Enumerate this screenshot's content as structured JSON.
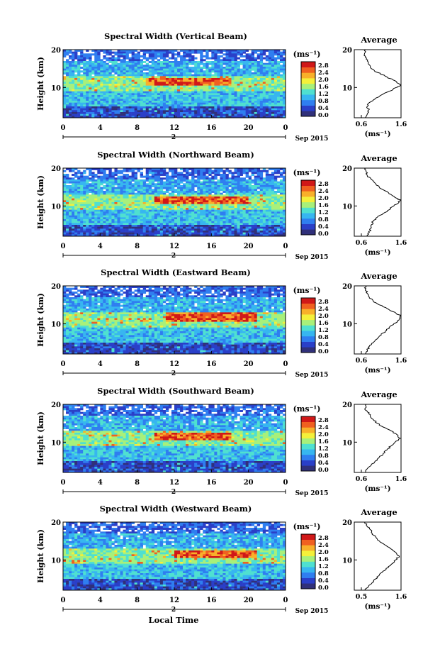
{
  "figure": {
    "xlabel": "Local Time",
    "date_label": "Sep 2015",
    "day_label": "2",
    "colorbar_unit": "(ms⁻¹)",
    "colorbar_ticks": [
      "2.8",
      "2.4",
      "2.0",
      "1.6",
      "1.2",
      "0.8",
      "0.4",
      "0.0"
    ],
    "avg_title": "Average",
    "avg_xlabel": "(ms⁻¹)",
    "ylabel": "Height (km)",
    "colors": {
      "scale": [
        "#30307a",
        "#2a3fc8",
        "#2f7ef0",
        "#37b6f0",
        "#4fe0d0",
        "#a8f07a",
        "#f4f03a",
        "#f8b02a",
        "#f06020",
        "#d01818"
      ],
      "axis": "#000000"
    }
  },
  "chart_data": [
    {
      "type": "heatmap",
      "title": "Spectral Width (Vertical Beam)",
      "x_ticks": [
        "0",
        "4",
        "8",
        "12",
        "16",
        "20",
        "0"
      ],
      "xlim": [
        0,
        24
      ],
      "y_ticks": [
        "20",
        "10"
      ],
      "ylim": [
        2,
        20
      ],
      "clim": [
        0.0,
        2.8
      ],
      "max_region": {
        "time": [
          9,
          18
        ],
        "height": [
          10.5,
          12.5
        ]
      },
      "average_profile": {
        "x_ticks": [
          "0.6",
          "1.6"
        ],
        "xlim": [
          0.6,
          1.6
        ],
        "y_ticks": [
          "20",
          "10"
        ],
        "heights": [
          2,
          3,
          4,
          5,
          6,
          7,
          8,
          9,
          10,
          10.5,
          11,
          12,
          13,
          14,
          15,
          16,
          17,
          18,
          19,
          20
        ],
        "values": [
          0.7,
          0.75,
          0.78,
          0.75,
          0.8,
          0.95,
          1.1,
          1.3,
          1.48,
          1.6,
          1.55,
          1.4,
          1.2,
          1.0,
          0.85,
          0.8,
          0.75,
          0.7,
          0.68,
          0.7
        ]
      }
    },
    {
      "type": "heatmap",
      "title": "Spectral Width (Northward Beam)",
      "x_ticks": [
        "0",
        "4",
        "8",
        "12",
        "16",
        "20",
        "0"
      ],
      "xlim": [
        0,
        24
      ],
      "y_ticks": [
        "20",
        "10"
      ],
      "ylim": [
        2,
        20
      ],
      "clim": [
        0.0,
        2.8
      ],
      "max_region": {
        "time": [
          10,
          20
        ],
        "height": [
          10.5,
          12.5
        ]
      },
      "average_profile": {
        "x_ticks": [
          "0.6",
          "1.6"
        ],
        "xlim": [
          0.6,
          1.6
        ],
        "y_ticks": [
          "20",
          "10"
        ],
        "heights": [
          2,
          3,
          4,
          5,
          6,
          7,
          8,
          9,
          10,
          11,
          11.5,
          12,
          13,
          14,
          15,
          16,
          17,
          18,
          19,
          20
        ],
        "values": [
          0.75,
          0.8,
          0.82,
          0.85,
          0.9,
          1.0,
          1.15,
          1.3,
          1.42,
          1.55,
          1.6,
          1.5,
          1.35,
          1.2,
          1.05,
          0.95,
          0.85,
          0.75,
          0.72,
          0.7
        ]
      }
    },
    {
      "type": "heatmap",
      "title": "Spectral Width (Eastward Beam)",
      "x_ticks": [
        "0",
        "4",
        "8",
        "12",
        "16",
        "20",
        "0"
      ],
      "xlim": [
        0,
        24
      ],
      "y_ticks": [
        "20",
        "10"
      ],
      "ylim": [
        2,
        20
      ],
      "clim": [
        0.0,
        2.8
      ],
      "max_region": {
        "time": [
          11,
          21
        ],
        "height": [
          10.5,
          13
        ]
      },
      "average_profile": {
        "x_ticks": [
          "0.6",
          "1.6"
        ],
        "xlim": [
          0.6,
          1.6
        ],
        "y_ticks": [
          "20",
          "10"
        ],
        "heights": [
          2,
          3,
          4,
          5,
          6,
          7,
          8,
          9,
          10,
          11,
          12,
          13,
          14,
          15,
          16,
          17,
          18,
          19,
          20
        ],
        "values": [
          0.7,
          0.75,
          0.8,
          0.9,
          1.0,
          1.1,
          1.2,
          1.3,
          1.42,
          1.55,
          1.6,
          1.45,
          1.25,
          1.05,
          0.9,
          0.8,
          0.75,
          0.7,
          0.72
        ]
      }
    },
    {
      "type": "heatmap",
      "title": "Spectral Width (Southward Beam)",
      "x_ticks": [
        "0",
        "4",
        "8",
        "12",
        "16",
        "20",
        "0"
      ],
      "xlim": [
        0,
        24
      ],
      "y_ticks": [
        "20",
        "10"
      ],
      "ylim": [
        2,
        20
      ],
      "clim": [
        0.0,
        2.8
      ],
      "max_region": {
        "time": [
          10,
          18
        ],
        "height": [
          10.5,
          12.5
        ]
      },
      "average_profile": {
        "x_ticks": [
          "0.6",
          "1.6"
        ],
        "xlim": [
          0.6,
          1.6
        ],
        "y_ticks": [
          "20",
          "10"
        ],
        "heights": [
          2,
          3,
          4,
          5,
          6,
          7,
          8,
          9,
          10,
          11,
          12,
          13,
          14,
          15,
          16,
          17,
          18,
          19,
          20
        ],
        "values": [
          0.7,
          0.75,
          0.85,
          0.95,
          1.05,
          1.15,
          1.25,
          1.35,
          1.45,
          1.58,
          1.5,
          1.35,
          1.15,
          1.0,
          0.9,
          0.82,
          0.75,
          0.7,
          0.72
        ]
      }
    },
    {
      "type": "heatmap",
      "title": "Spectral Width (Westward Beam)",
      "x_ticks": [
        "0",
        "4",
        "8",
        "12",
        "16",
        "20",
        "0"
      ],
      "xlim": [
        0,
        24
      ],
      "y_ticks": [
        "20",
        "10"
      ],
      "ylim": [
        2,
        20
      ],
      "clim": [
        0.0,
        2.8
      ],
      "max_region": {
        "time": [
          12,
          21
        ],
        "height": [
          10.5,
          12.5
        ]
      },
      "average_profile": {
        "x_ticks": [
          "0.5",
          "1.6"
        ],
        "xlim": [
          0.5,
          1.6
        ],
        "y_ticks": [
          "20",
          "10"
        ],
        "heights": [
          2,
          3,
          4,
          5,
          6,
          7,
          8,
          9,
          10,
          11,
          12,
          13,
          14,
          15,
          16,
          17,
          18,
          19,
          20
        ],
        "values": [
          0.6,
          0.7,
          0.8,
          0.9,
          1.0,
          1.1,
          1.25,
          1.35,
          1.45,
          1.55,
          1.45,
          1.3,
          1.15,
          1.0,
          0.9,
          0.8,
          0.75,
          0.65,
          0.6
        ]
      }
    }
  ]
}
